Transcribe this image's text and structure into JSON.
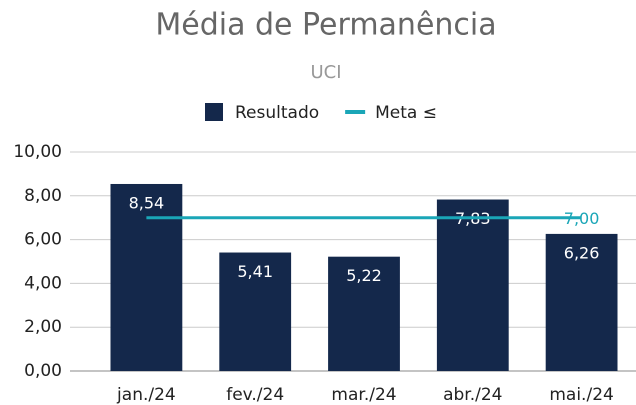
{
  "chart_data": {
    "type": "bar",
    "title": "Média de Permanência",
    "subtitle": "UCI",
    "categories": [
      "jan./24",
      "fev./24",
      "mar./24",
      "abr./24",
      "mai./24"
    ],
    "series": [
      {
        "name": "Resultado",
        "type": "bar",
        "color": "#14284b",
        "values": [
          8.54,
          5.41,
          5.22,
          7.83,
          6.26
        ],
        "value_labels": [
          "8,54",
          "5,41",
          "5,22",
          "7,83",
          "6,26"
        ]
      },
      {
        "name": "Meta ≤",
        "type": "line",
        "color": "#1aa6b7",
        "values": [
          7,
          7,
          7,
          7,
          7
        ],
        "value_labels": [
          null,
          null,
          null,
          null,
          "7,00"
        ]
      }
    ],
    "ylim": [
      0,
      10
    ],
    "yticks": [
      {
        "value": 0,
        "label": "0,00"
      },
      {
        "value": 2,
        "label": "2,00"
      },
      {
        "value": 4,
        "label": "4,00"
      },
      {
        "value": 6,
        "label": "6,00"
      },
      {
        "value": 8,
        "label": "8,00"
      },
      {
        "value": 10,
        "label": "10,00"
      }
    ],
    "grid": true,
    "legend": "top"
  }
}
